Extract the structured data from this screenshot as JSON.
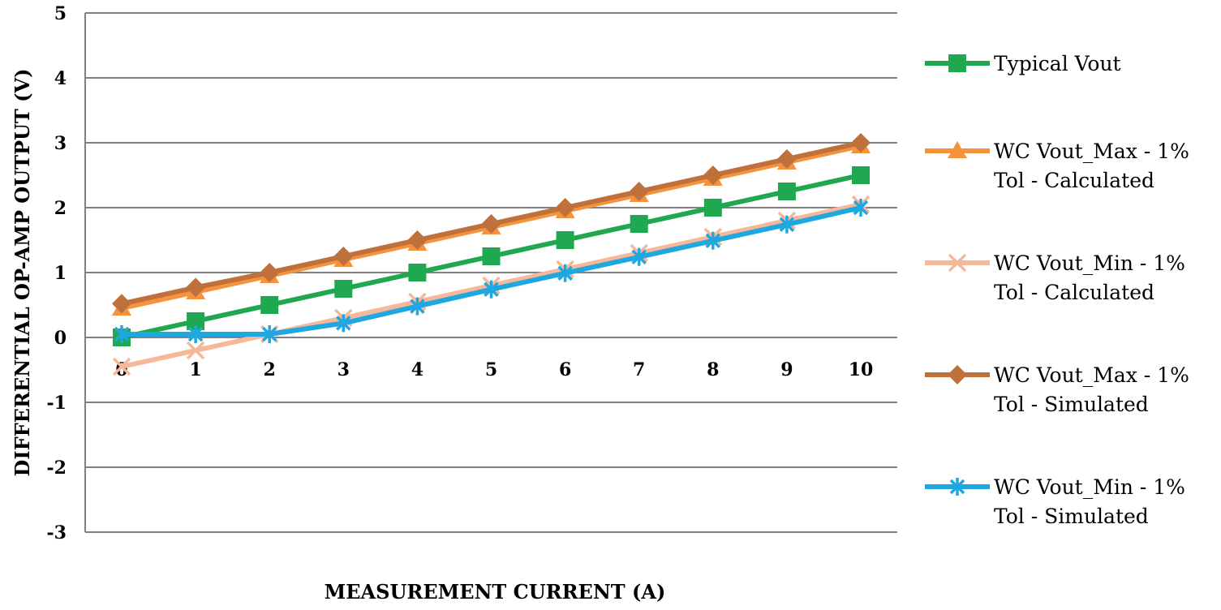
{
  "chart_data": {
    "type": "line",
    "title": "",
    "xlabel": "MEASUREMENT CURRENT (A)",
    "ylabel": "DIFFERENTIAL OP-AMP OUTPUT (V)",
    "categories": [
      "0",
      "1",
      "2",
      "3",
      "4",
      "5",
      "6",
      "7",
      "8",
      "9",
      "10"
    ],
    "x": [
      0,
      1,
      2,
      3,
      4,
      5,
      6,
      7,
      8,
      9,
      10
    ],
    "yticks": [
      "5",
      "4",
      "3",
      "2",
      "1",
      "0",
      "-1",
      "-2",
      "-3"
    ],
    "ylim": [
      -3,
      5
    ],
    "grid": true,
    "legend_position": "right",
    "series": [
      {
        "name": "Typical Vout",
        "name_lines": [
          "Typical Vout"
        ],
        "color": "#1fa84f",
        "marker": "square",
        "values": [
          0,
          0.25,
          0.5,
          0.75,
          1.0,
          1.25,
          1.5,
          1.75,
          2.0,
          2.25,
          2.5
        ]
      },
      {
        "name": "WC Vout_Max - 1% Tol - Calculated",
        "name_lines": [
          "WC Vout_Max - 1%",
          "Tol - Calculated"
        ],
        "color": "#f5923e",
        "marker": "triangle",
        "values": [
          0.45,
          0.7,
          0.95,
          1.2,
          1.45,
          1.7,
          1.95,
          2.2,
          2.45,
          2.7,
          2.95
        ]
      },
      {
        "name": "WC Vout_Min - 1% Tol - Calculated",
        "name_lines": [
          "WC Vout_Min - 1%",
          "Tol - Calculated"
        ],
        "color": "#f5b89a",
        "marker": "x",
        "values": [
          -0.45,
          -0.2,
          0.05,
          0.3,
          0.55,
          0.8,
          1.05,
          1.3,
          1.55,
          1.8,
          2.05
        ]
      },
      {
        "name": "WC Vout_Max - 1% Tol - Simulated",
        "name_lines": [
          "WC Vout_Max - 1%",
          "Tol - Simulated"
        ],
        "color": "#c0703a",
        "marker": "diamond",
        "values": [
          0.52,
          0.77,
          1.0,
          1.25,
          1.5,
          1.75,
          2.0,
          2.25,
          2.5,
          2.75,
          3.0
        ]
      },
      {
        "name": "WC Vout_Min - 1% Tol - Simulated",
        "name_lines": [
          "WC Vout_Min - 1%",
          "Tol - Simulated"
        ],
        "color": "#1fa8e0",
        "marker": "star",
        "values": [
          0.05,
          0.05,
          0.05,
          0.22,
          0.48,
          0.74,
          0.99,
          1.24,
          1.49,
          1.74,
          2.0
        ]
      }
    ]
  }
}
